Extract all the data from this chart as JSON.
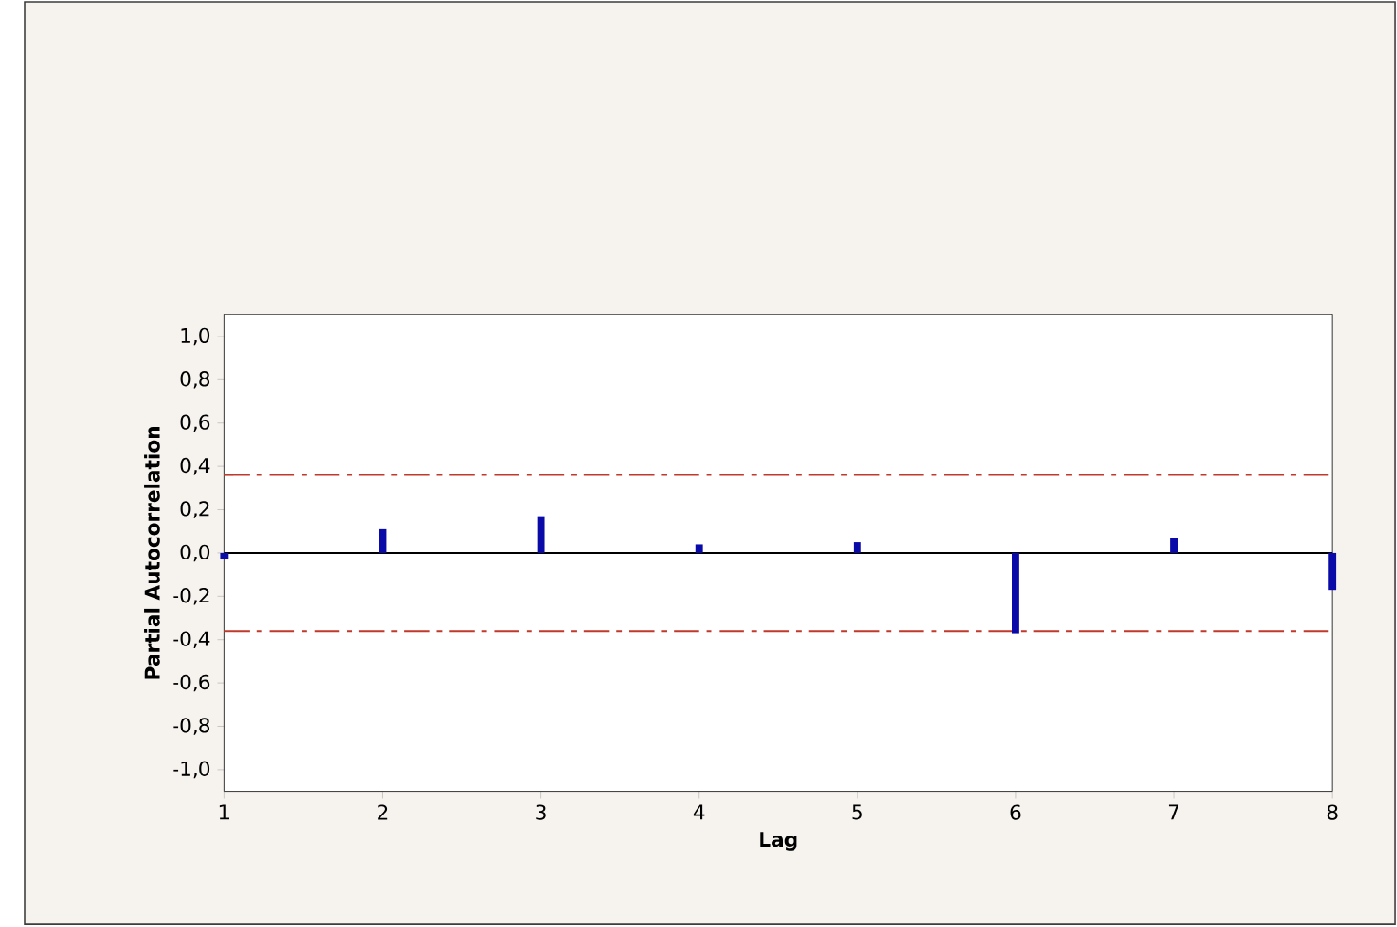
{
  "chart_data": {
    "type": "bar",
    "xlabel": "Lag",
    "ylabel": "Partial Autocorrelation",
    "x": [
      1,
      2,
      3,
      4,
      5,
      6,
      7,
      8
    ],
    "values": [
      -0.03,
      0.11,
      0.17,
      0.04,
      0.05,
      -0.37,
      0.07,
      -0.17
    ],
    "color": "#0a0aa8",
    "xlim": [
      1,
      8
    ],
    "xticks": [
      1,
      2,
      3,
      4,
      5,
      6,
      7,
      8
    ],
    "ylim": [
      -1.1,
      1.1
    ],
    "yticks": [
      {
        "value": -1.0,
        "label": "-1,0"
      },
      {
        "value": -0.8,
        "label": "-0,8"
      },
      {
        "value": -0.6,
        "label": "-0,6"
      },
      {
        "value": -0.4,
        "label": "-0,4"
      },
      {
        "value": -0.2,
        "label": "-0,2"
      },
      {
        "value": 0.0,
        "label": "0,0"
      },
      {
        "value": 0.2,
        "label": "0,2"
      },
      {
        "value": 0.4,
        "label": "0,4"
      },
      {
        "value": 0.6,
        "label": "0,6"
      },
      {
        "value": 0.8,
        "label": "0,8"
      },
      {
        "value": 1.0,
        "label": "1,0"
      }
    ],
    "ref_lines": [
      {
        "axis": "y",
        "value": 0,
        "color": "#000000",
        "line_style": "solid"
      },
      {
        "axis": "y",
        "value": 0.36,
        "color": "#c0392b",
        "line_style": "dashdot"
      },
      {
        "axis": "y",
        "value": -0.36,
        "color": "#c0392b",
        "line_style": "dashdot"
      }
    ],
    "grid": false
  }
}
